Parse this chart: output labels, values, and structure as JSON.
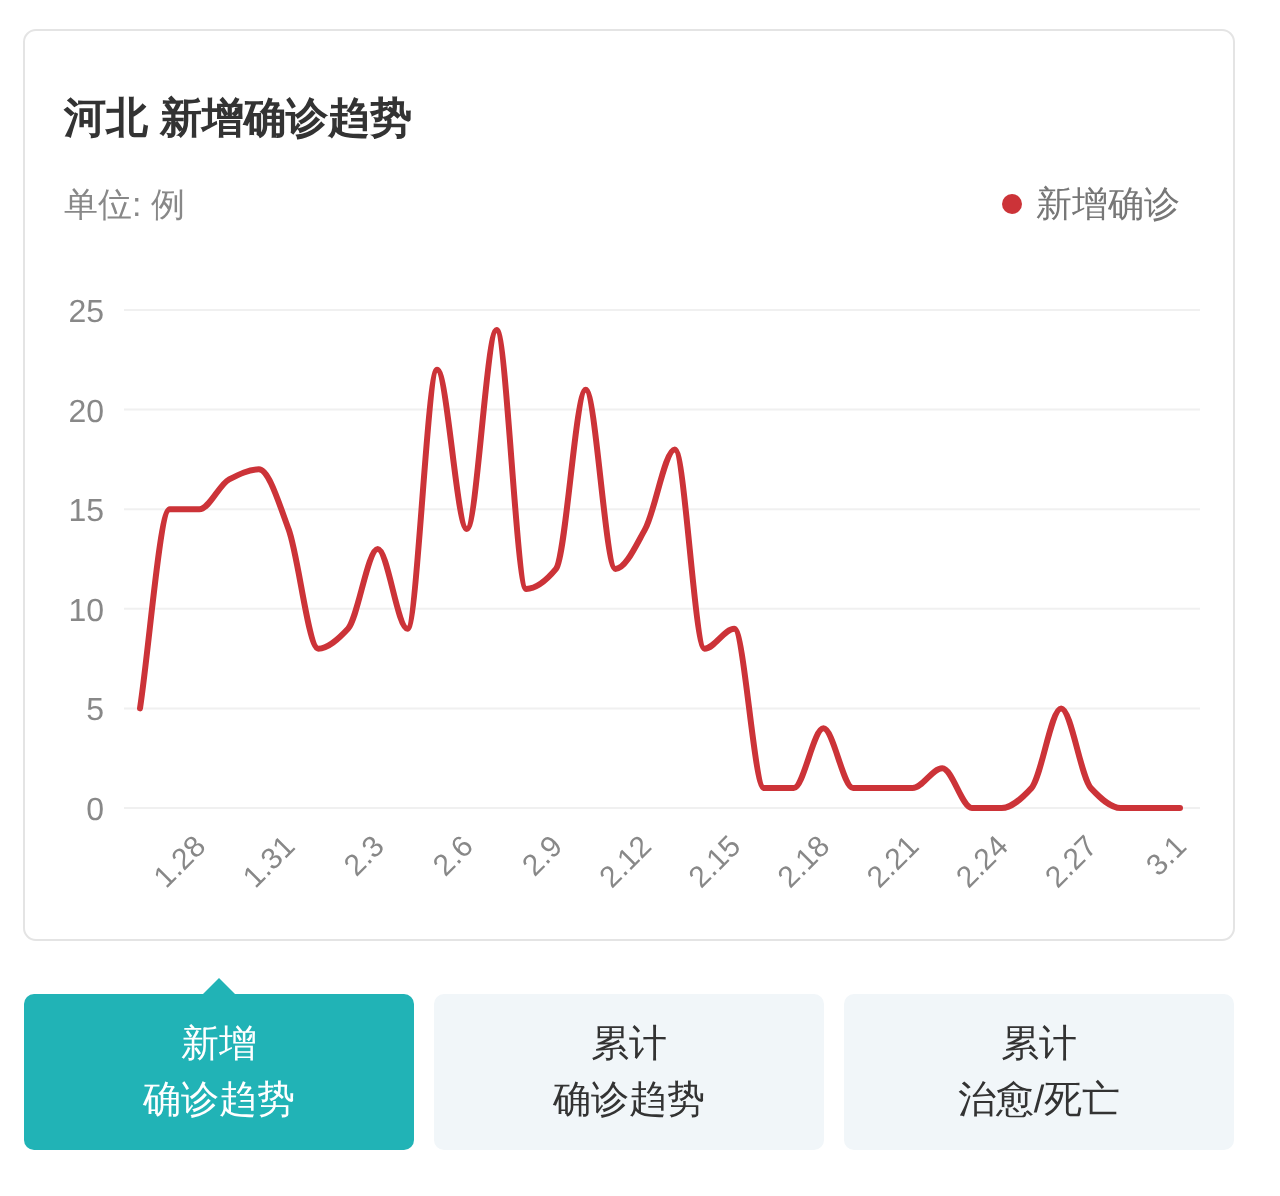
{
  "chart_data": {
    "type": "line",
    "title": "河北 新增确诊趋势",
    "subtitle": "单位: 例",
    "categories": [
      null,
      null,
      "1.28",
      null,
      null,
      "1.31",
      null,
      null,
      "2.3",
      null,
      null,
      "2.6",
      null,
      null,
      "2.9",
      null,
      null,
      "2.12",
      null,
      null,
      "2.15",
      null,
      null,
      "2.18",
      null,
      null,
      "2.21",
      null,
      null,
      "2.24",
      null,
      null,
      "2.27",
      null,
      null,
      "3.1"
    ],
    "series": [
      {
        "name": "新增确诊",
        "color": "#cc3338",
        "values": [
          5,
          15,
          15,
          16.5,
          17,
          14,
          8,
          9,
          13,
          9,
          22,
          14,
          24,
          11,
          12,
          21,
          12,
          14,
          18,
          8,
          9,
          1,
          1,
          4,
          1,
          1,
          1,
          2,
          0,
          0,
          1,
          5,
          1,
          0,
          0,
          0
        ]
      }
    ],
    "ylim": [
      0,
      25
    ],
    "yticks": [
      0,
      5,
      10,
      15,
      20,
      25
    ],
    "grid": "y",
    "legend": "top right",
    "line_style": "solid",
    "annotations": [
      "新增确诊趋势",
      "累计确诊趋势",
      "累计治愈/死亡"
    ]
  }
}
